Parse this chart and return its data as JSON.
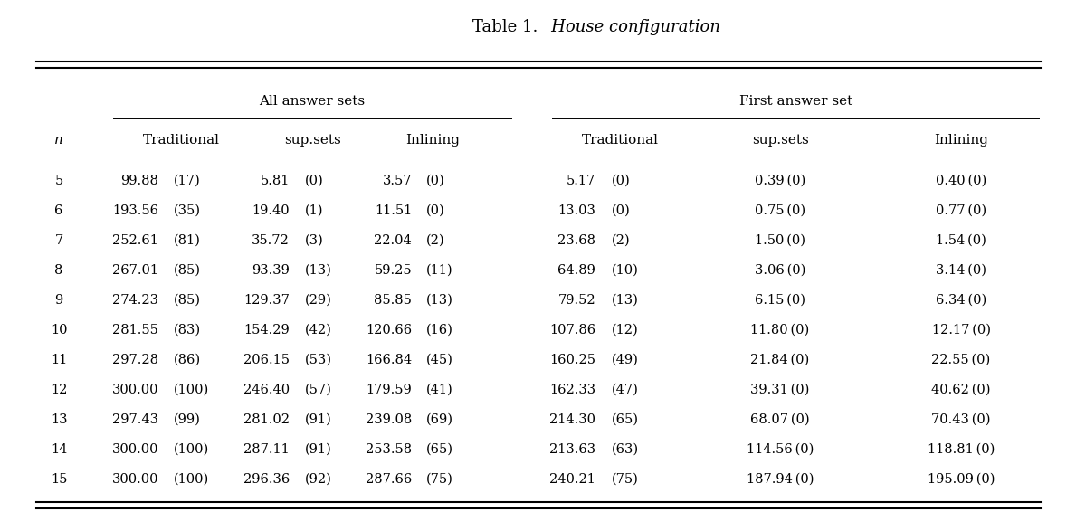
{
  "title_normal": "Table 1.",
  "title_italic": "  House configuration",
  "group_headers": [
    "All answer sets",
    "First answer set"
  ],
  "col_headers_sub": [
    "Traditional",
    "sup.sets",
    "Inlining",
    "Traditional",
    "sup.sets",
    "Inlining"
  ],
  "rows": [
    [
      5,
      "99.88",
      "(17)",
      "5.81",
      "(0)",
      "3.57",
      "(0)",
      "5.17",
      "(0)",
      "0.39 (0)",
      "0.40 (0)"
    ],
    [
      6,
      "193.56",
      "(35)",
      "19.40",
      "(1)",
      "11.51",
      "(0)",
      "13.03",
      "(0)",
      "0.75 (0)",
      "0.77 (0)"
    ],
    [
      7,
      "252.61",
      "(81)",
      "35.72",
      "(3)",
      "22.04",
      "(2)",
      "23.68",
      "(2)",
      "1.50 (0)",
      "1.54 (0)"
    ],
    [
      8,
      "267.01",
      "(85)",
      "93.39",
      "(13)",
      "59.25",
      "(11)",
      "64.89",
      "(10)",
      "3.06 (0)",
      "3.14 (0)"
    ],
    [
      9,
      "274.23",
      "(85)",
      "129.37",
      "(29)",
      "85.85",
      "(13)",
      "79.52",
      "(13)",
      "6.15 (0)",
      "6.34 (0)"
    ],
    [
      10,
      "281.55",
      "(83)",
      "154.29",
      "(42)",
      "120.66",
      "(16)",
      "107.86",
      "(12)",
      "11.80 (0)",
      "12.17 (0)"
    ],
    [
      11,
      "297.28",
      "(86)",
      "206.15",
      "(53)",
      "166.84",
      "(45)",
      "160.25",
      "(49)",
      "21.84 (0)",
      "22.55 (0)"
    ],
    [
      12,
      "300.00",
      "(100)",
      "246.40",
      "(57)",
      "179.59",
      "(41)",
      "162.33",
      "(47)",
      "39.31 (0)",
      "40.62 (0)"
    ],
    [
      13,
      "297.43",
      "(99)",
      "281.02",
      "(91)",
      "239.08",
      "(69)",
      "214.30",
      "(65)",
      "68.07 (0)",
      "70.43 (0)"
    ],
    [
      14,
      "300.00",
      "(100)",
      "287.11",
      "(91)",
      "253.58",
      "(65)",
      "213.63",
      "(63)",
      "114.56 (0)",
      "118.81 (0)"
    ],
    [
      15,
      "300.00",
      "(100)",
      "296.36",
      "(92)",
      "287.66",
      "(75)",
      "240.21",
      "(75)",
      "187.94 (0)",
      "195.09 (0)"
    ]
  ],
  "bg_color": "#ffffff",
  "text_color": "#000000",
  "title_fontsize": 13,
  "header_fontsize": 11,
  "cell_fontsize": 10.5
}
